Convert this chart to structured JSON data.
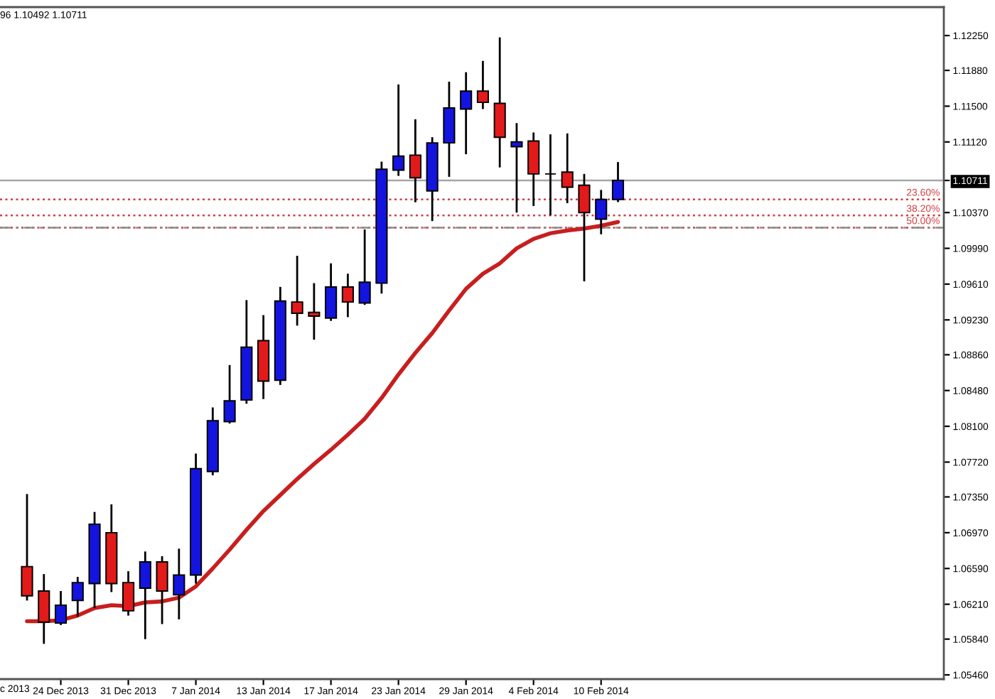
{
  "chart_data": {
    "type": "candlestick",
    "categories": [
      null,
      null,
      "24 Dec 2013",
      null,
      null,
      null,
      "31 Dec 2013",
      null,
      null,
      null,
      "7 Jan 2014",
      null,
      null,
      null,
      "13 Jan 2014",
      null,
      null,
      null,
      "17 Jan 2014",
      null,
      null,
      null,
      "23 Jan 2014",
      null,
      null,
      null,
      "29 Jan 2014",
      null,
      null,
      null,
      "4 Feb 2014",
      null,
      null,
      null,
      "10 Feb 2014",
      null
    ],
    "series": [
      {
        "ohlc": [
          [
            1.0661,
            1.0737,
            1.0626,
            1.063
          ],
          [
            1.0635,
            1.0652,
            1.058,
            1.0602
          ],
          [
            1.0601,
            1.0634,
            1.06,
            1.062
          ],
          [
            1.0625,
            1.0649,
            1.0609,
            1.0644
          ],
          [
            1.0643,
            1.0718,
            1.0618,
            1.0706
          ],
          [
            1.0697,
            1.0726,
            1.0635,
            1.0643
          ],
          [
            1.0644,
            1.0655,
            1.061,
            1.0614
          ],
          [
            1.0638,
            1.0676,
            1.0585,
            1.0666
          ],
          [
            1.0666,
            1.0671,
            1.0601,
            1.0635
          ],
          [
            1.0631,
            1.0679,
            1.0606,
            1.0652
          ],
          [
            1.0652,
            1.078,
            1.0644,
            1.0765
          ],
          [
            1.0762,
            1.0829,
            1.0759,
            1.0816
          ],
          [
            1.0815,
            1.0874,
            1.0814,
            1.0837
          ],
          [
            1.0838,
            1.0943,
            1.0835,
            1.0894
          ],
          [
            1.0901,
            1.0927,
            1.084,
            1.0858
          ],
          [
            1.0859,
            1.0957,
            1.0855,
            1.0943
          ],
          [
            1.0942,
            1.099,
            1.0918,
            1.093
          ],
          [
            1.0931,
            1.0961,
            1.0903,
            1.0927
          ],
          [
            1.0925,
            1.0982,
            1.0923,
            1.0958
          ],
          [
            1.0958,
            1.0971,
            1.0927,
            1.0942
          ],
          [
            1.0941,
            1.1018,
            1.094,
            1.0963
          ],
          [
            1.0962,
            1.109,
            1.0952,
            1.1083
          ],
          [
            1.1082,
            1.1172,
            1.1077,
            1.1097
          ],
          [
            1.1098,
            1.1135,
            1.1049,
            1.1074
          ],
          [
            1.106,
            1.1116,
            1.1029,
            1.1111
          ],
          [
            1.1111,
            1.1175,
            1.1076,
            1.1148
          ],
          [
            1.1147,
            1.1185,
            1.11,
            1.1166
          ],
          [
            1.1166,
            1.1197,
            1.1148,
            1.1154
          ],
          [
            1.1153,
            1.1222,
            1.1086,
            1.1117
          ],
          [
            1.1107,
            1.1131,
            1.1038,
            1.1112
          ],
          [
            1.1113,
            1.1121,
            1.1045,
            1.1078
          ],
          [
            1.1078,
            1.1119,
            1.1035,
            1.1078
          ],
          [
            1.108,
            1.112,
            1.1048,
            1.1064
          ],
          [
            1.1066,
            1.1077,
            1.0965,
            1.1037
          ],
          [
            1.103,
            1.106,
            1.1015,
            1.1051
          ],
          [
            1.1051,
            1.10896,
            1.10492,
            1.10711
          ]
        ],
        "colors": [
          "#e31a1a",
          "#e31a1a",
          "#1414e0",
          "#1414e0",
          "#1414e0",
          "#e31a1a",
          "#e31a1a",
          "#1414e0",
          "#e31a1a",
          "#1414e0",
          "#1414e0",
          "#1414e0",
          "#1414e0",
          "#1414e0",
          "#e31a1a",
          "#1414e0",
          "#e31a1a",
          "#e31a1a",
          "#1414e0",
          "#e31a1a",
          "#1414e0",
          "#1414e0",
          "#1414e0",
          "#e31a1a",
          "#1414e0",
          "#1414e0",
          "#1414e0",
          "#e31a1a",
          "#e31a1a",
          "#1414e0",
          "#e31a1a",
          "#000000",
          "#e31a1a",
          "#e31a1a",
          "#1414e0",
          "#1414e0"
        ]
      },
      {
        "type": "line",
        "color": "#c81e1e",
        "values": [
          1.0603,
          1.0603,
          1.0604,
          1.0609,
          1.0617,
          1.062,
          1.0619,
          1.0623,
          1.0624,
          1.0628,
          1.064,
          1.0659,
          1.0679,
          1.07,
          1.072,
          1.0737,
          1.0754,
          1.077,
          1.0785,
          1.0801,
          1.0818,
          1.084,
          1.0865,
          1.0888,
          1.0909,
          1.0933,
          1.0956,
          1.0972,
          1.0983,
          1.0999,
          1.1009,
          1.1015,
          1.1018,
          1.102,
          1.1023,
          1.1027
        ]
      }
    ],
    "ylim": [
      1.05415,
      1.12552
    ],
    "yticks": [
      {
        "value": 1.1225,
        "label": "1.12250"
      },
      {
        "value": 1.1188,
        "label": "1.11880"
      },
      {
        "value": 1.115,
        "label": "1.11500"
      },
      {
        "value": 1.1112,
        "label": "1.11120"
      },
      {
        "value": 1.10711,
        "label": "1.10711"
      },
      {
        "value": 1.1037,
        "label": "1.10370"
      },
      {
        "value": 1.0999,
        "label": "1.09990"
      },
      {
        "value": 1.0961,
        "label": "1.09610"
      },
      {
        "value": 1.0923,
        "label": "1.09230"
      },
      {
        "value": 1.0886,
        "label": "1.08860"
      },
      {
        "value": 1.0848,
        "label": "1.08480"
      },
      {
        "value": 1.081,
        "label": "1.08100"
      },
      {
        "value": 1.0772,
        "label": "1.07720"
      },
      {
        "value": 1.0735,
        "label": "1.07350"
      },
      {
        "value": 1.0697,
        "label": "1.06970"
      },
      {
        "value": 1.0659,
        "label": "1.06590"
      },
      {
        "value": 1.0621,
        "label": "1.06210"
      },
      {
        "value": 1.0584,
        "label": "1.05840"
      },
      {
        "value": 1.0546,
        "label": "1.05460"
      }
    ],
    "ref_lines": [
      {
        "axis": "y",
        "value": 1.10711,
        "color": "#a6a6a6",
        "line_style": "solid"
      },
      {
        "axis": "y",
        "value": 1.1051,
        "color": "#d04040",
        "line_style": "dotted"
      },
      {
        "axis": "y",
        "value": 1.1034,
        "color": "#d04040",
        "line_style": "dotted"
      },
      {
        "axis": "y",
        "value": 1.1021,
        "color": "#d04040",
        "line_style": "dotted"
      },
      {
        "axis": "y",
        "value": 1.1021,
        "color": "#8c8c8c",
        "line_style": "dashdot"
      }
    ],
    "annotations": [
      "96 1.10492 1.10711",
      "c 2013",
      {
        "text": "23.60%",
        "y": 1.1051
      },
      {
        "text": "38.20%",
        "y": 1.1034
      },
      {
        "text": "50.00%",
        "y": 1.1021
      }
    ]
  }
}
